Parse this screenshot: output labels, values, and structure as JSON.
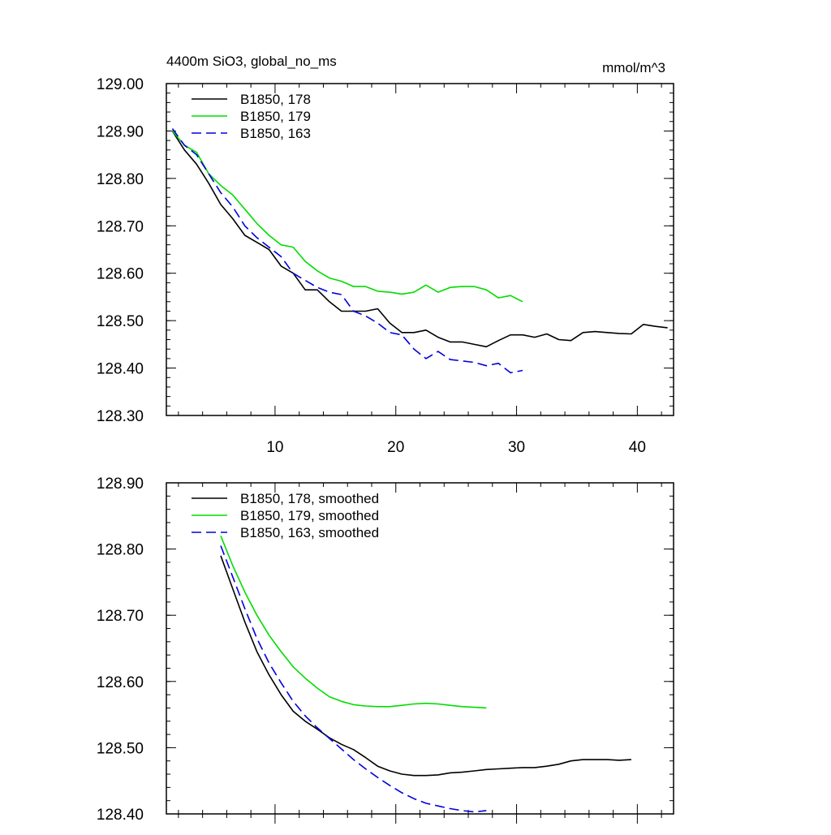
{
  "chart_data": [
    {
      "type": "line",
      "title": "4400m SiO3, global_no_ms",
      "units": "mmol/m^3",
      "xlabel": "",
      "ylabel": "",
      "xlim": [
        1,
        43
      ],
      "ylim": [
        128.3,
        129.0
      ],
      "xticks": [
        10,
        20,
        30,
        40
      ],
      "yticks": [
        128.3,
        128.4,
        128.5,
        128.6,
        128.7,
        128.8,
        128.9,
        129.0
      ],
      "ytick_labels": [
        "128.30",
        "128.40",
        "128.50",
        "128.60",
        "128.70",
        "128.80",
        "128.90",
        "129.00"
      ],
      "legend": "top-left",
      "series": [
        {
          "name": "B1850, 178",
          "color": "#000000",
          "dash": "solid",
          "x": [
            1.5,
            2.5,
            3.5,
            4.5,
            5.5,
            6.5,
            7.5,
            8.5,
            9.5,
            10.5,
            11.5,
            12.5,
            13.5,
            14.5,
            15.5,
            16.5,
            17.5,
            18.5,
            19.5,
            20.5,
            21.5,
            22.5,
            23.5,
            24.5,
            25.5,
            26.5,
            27.5,
            28.5,
            29.5,
            30.5,
            31.5,
            32.5,
            33.5,
            34.5,
            35.5,
            36.5,
            37.5,
            38.5,
            39.5,
            40.5,
            41.5,
            42.5
          ],
          "y": [
            128.9,
            128.86,
            128.83,
            128.79,
            128.745,
            128.715,
            128.68,
            128.665,
            128.65,
            128.615,
            128.6,
            128.565,
            128.565,
            128.54,
            128.52,
            128.52,
            128.52,
            128.525,
            128.495,
            128.475,
            128.475,
            128.48,
            128.465,
            128.455,
            128.455,
            128.45,
            128.445,
            128.458,
            128.47,
            128.47,
            128.465,
            128.472,
            128.46,
            128.458,
            128.475,
            128.477,
            128.475,
            128.473,
            128.472,
            128.492,
            128.488,
            128.485
          ]
        },
        {
          "name": "B1850, 179",
          "color": "#00dd00",
          "dash": "solid",
          "x": [
            1.5,
            2.5,
            3.5,
            4.5,
            5.5,
            6.5,
            7.5,
            8.5,
            9.5,
            10.5,
            11.5,
            12.5,
            13.5,
            14.5,
            15.5,
            16.5,
            17.5,
            18.5,
            19.5,
            20.5,
            21.5,
            22.5,
            23.5,
            24.5,
            25.5,
            26.5,
            27.5,
            28.5,
            29.5,
            30.5
          ],
          "y": [
            128.9,
            128.87,
            128.855,
            128.81,
            128.785,
            128.765,
            128.735,
            128.705,
            128.68,
            128.66,
            128.655,
            128.625,
            128.605,
            128.59,
            128.583,
            128.572,
            128.572,
            128.562,
            128.56,
            128.556,
            128.56,
            128.575,
            128.56,
            128.57,
            128.572,
            128.572,
            128.565,
            128.548,
            128.553,
            128.54
          ]
        },
        {
          "name": "B1850, 163",
          "color": "#0000dd",
          "dash": "dashed",
          "x": [
            1.5,
            2.5,
            3.5,
            4.5,
            5.5,
            6.5,
            7.5,
            8.5,
            9.5,
            10.5,
            11.5,
            12.5,
            13.5,
            14.5,
            15.5,
            16.5,
            17.5,
            18.5,
            19.5,
            20.5,
            21.5,
            22.5,
            23.5,
            24.5,
            25.5,
            26.5,
            27.5,
            28.5,
            29.5,
            30.5
          ],
          "y": [
            128.905,
            128.87,
            128.85,
            128.81,
            128.77,
            128.74,
            128.7,
            128.675,
            128.655,
            128.635,
            128.6,
            128.585,
            128.57,
            128.56,
            128.555,
            128.52,
            128.51,
            128.495,
            128.475,
            128.47,
            128.44,
            128.42,
            128.435,
            128.418,
            128.415,
            128.412,
            128.405,
            128.41,
            128.39,
            128.395
          ]
        }
      ]
    },
    {
      "type": "line",
      "title": "",
      "xlabel": "",
      "ylabel": "",
      "xlim": [
        1,
        43
      ],
      "ylim": [
        128.4,
        128.9
      ],
      "xticks": [
        10,
        20,
        30,
        40
      ],
      "yticks": [
        128.4,
        128.5,
        128.6,
        128.7,
        128.8,
        128.9
      ],
      "ytick_labels": [
        "128.40",
        "128.50",
        "128.60",
        "128.70",
        "128.80",
        "128.90"
      ],
      "legend": "top-left",
      "series": [
        {
          "name": "B1850, 178, smoothed",
          "color": "#000000",
          "dash": "solid",
          "x": [
            5.5,
            6.5,
            7.5,
            8.5,
            9.5,
            10.5,
            11.5,
            12.5,
            13.5,
            14.5,
            15.5,
            16.5,
            17.5,
            18.5,
            19.5,
            20.5,
            21.5,
            22.5,
            23.5,
            24.5,
            25.5,
            26.5,
            27.5,
            28.5,
            29.5,
            30.5,
            31.5,
            32.5,
            33.5,
            34.5,
            35.5,
            36.5,
            37.5,
            38.5,
            39.5
          ],
          "y": [
            128.79,
            128.74,
            128.69,
            128.645,
            128.61,
            128.58,
            128.555,
            128.54,
            128.528,
            128.515,
            128.505,
            128.497,
            128.485,
            128.472,
            128.465,
            128.46,
            128.458,
            128.458,
            128.459,
            128.462,
            128.463,
            128.465,
            128.467,
            128.468,
            128.469,
            128.47,
            128.47,
            128.472,
            128.475,
            128.48,
            128.482,
            128.482,
            128.482,
            128.481,
            128.482
          ]
        },
        {
          "name": "B1850, 179, smoothed",
          "color": "#00dd00",
          "dash": "solid",
          "x": [
            5.5,
            6.5,
            7.5,
            8.5,
            9.5,
            10.5,
            11.5,
            12.5,
            13.5,
            14.5,
            15.5,
            16.5,
            17.5,
            18.5,
            19.5,
            20.5,
            21.5,
            22.5,
            23.5,
            24.5,
            25.5,
            26.5,
            27.5
          ],
          "y": [
            128.82,
            128.775,
            128.735,
            128.7,
            128.67,
            128.645,
            128.622,
            128.605,
            128.59,
            128.577,
            128.57,
            128.565,
            128.563,
            128.562,
            128.562,
            128.564,
            128.566,
            128.567,
            128.566,
            128.564,
            128.562,
            128.561,
            128.56
          ]
        },
        {
          "name": "B1850, 163, smoothed",
          "color": "#0000dd",
          "dash": "dashed",
          "x": [
            5.5,
            6.5,
            7.5,
            8.5,
            9.5,
            10.5,
            11.5,
            12.5,
            13.5,
            14.5,
            15.5,
            16.5,
            17.5,
            18.5,
            19.5,
            20.5,
            21.5,
            22.5,
            23.5,
            24.5,
            25.5,
            26.5,
            27.5
          ],
          "y": [
            128.805,
            128.758,
            128.71,
            128.665,
            128.628,
            128.598,
            128.57,
            128.548,
            128.53,
            128.514,
            128.498,
            128.482,
            128.468,
            128.455,
            128.443,
            128.432,
            128.423,
            128.416,
            128.412,
            128.408,
            128.405,
            128.403,
            128.405
          ]
        }
      ]
    }
  ]
}
